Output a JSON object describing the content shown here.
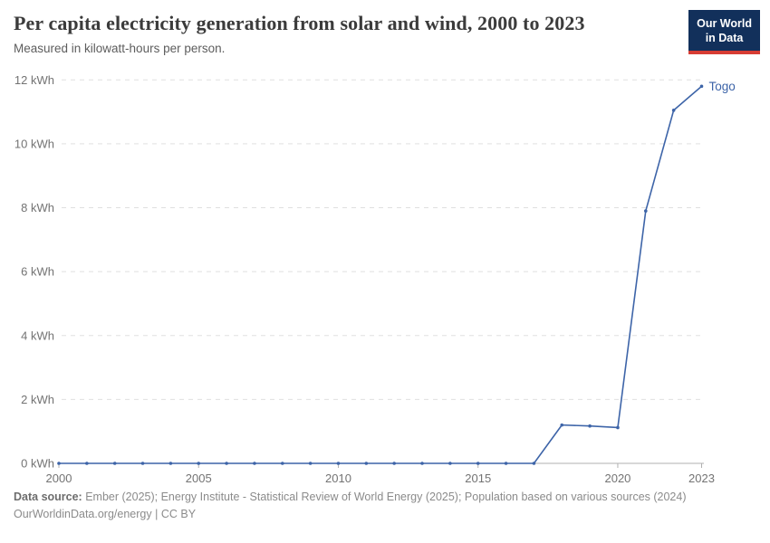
{
  "header": {
    "title": "Per capita electricity generation from solar and wind, 2000 to 2023",
    "subtitle": "Measured in kilowatt-hours per person.",
    "logo": {
      "line1": "Our World",
      "line2": "in Data"
    }
  },
  "chart_data": {
    "type": "line",
    "title": "Per capita electricity generation from solar and wind, 2000 to 2023",
    "unit": "kilowatt-hours per person",
    "x": [
      2000,
      2001,
      2002,
      2003,
      2004,
      2005,
      2006,
      2007,
      2008,
      2009,
      2010,
      2011,
      2012,
      2013,
      2014,
      2015,
      2016,
      2017,
      2018,
      2019,
      2020,
      2021,
      2022,
      2023
    ],
    "series": [
      {
        "name": "Togo",
        "color": "#3d64a8",
        "values": [
          0,
          0,
          0,
          0,
          0,
          0,
          0,
          0,
          0,
          0,
          0,
          0,
          0,
          0,
          0,
          0,
          0,
          0,
          1.2,
          1.17,
          1.12,
          7.9,
          11.05,
          11.8
        ]
      }
    ],
    "xlim": [
      2000,
      2023
    ],
    "ylim": [
      0,
      12
    ],
    "x_ticks": [
      2000,
      2005,
      2010,
      2015,
      2020,
      2023
    ],
    "y_ticks": [
      0,
      2,
      4,
      6,
      8,
      10,
      12
    ],
    "y_tick_suffix": " kWh",
    "grid": "horizontal-dashed",
    "legend_position": "end-of-line-label",
    "end_label": "Togo"
  },
  "footer": {
    "datasource_label": "Data source:",
    "datasource_text": " Ember (2025); Energy Institute - Statistical Review of World Energy (2025); Population based on various sources (2024)",
    "link": "OurWorldinData.org/energy",
    "separator": " | ",
    "license": "CC BY"
  },
  "colors": {
    "series_blue": "#3d64a8",
    "logo_navy": "#12305b",
    "logo_red": "#d73c34",
    "grid": "#e0e0e0",
    "axis": "#b0b0b0",
    "tick_text": "#737373",
    "title_text": "#3b3b3b"
  }
}
